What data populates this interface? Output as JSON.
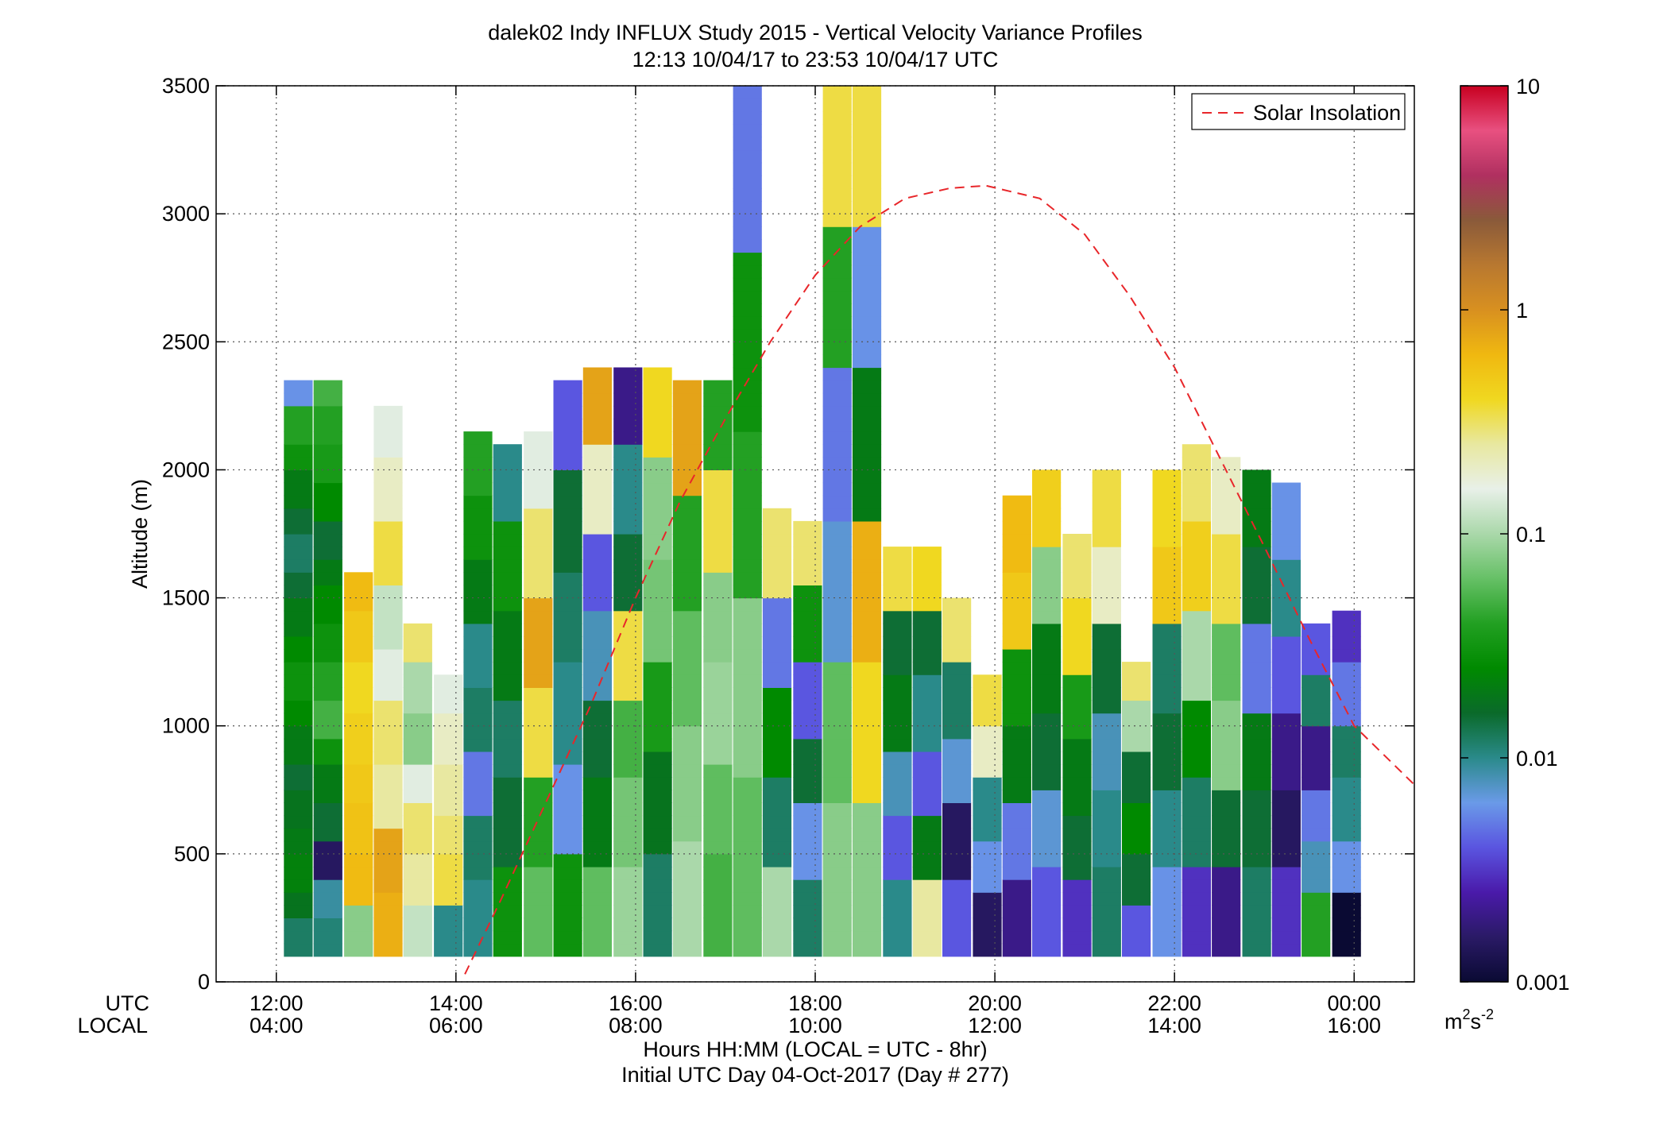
{
  "chart_data": {
    "type": "heatmap",
    "title": "dalek02 Indy INFLUX Study 2015 - Vertical Velocity Variance Profiles",
    "subtitle": "12:13 10/04/17 to 23:53 10/04/17  UTC",
    "xlabel": "Hours HH:MM  (LOCAL = UTC - 8hr)",
    "xlabel2": "Initial UTC Day 04-Oct-2017 (Day # 277)",
    "ylabel": "Altitude (m)",
    "x_row_labels": [
      "UTC",
      "LOCAL"
    ],
    "xlim_hours": [
      11.33,
      24.67
    ],
    "ylim": [
      0,
      3500
    ],
    "x_ticks": [
      {
        "value": 12,
        "utc": "12:00",
        "local": "04:00"
      },
      {
        "value": 14,
        "utc": "14:00",
        "local": "06:00"
      },
      {
        "value": 16,
        "utc": "16:00",
        "local": "08:00"
      },
      {
        "value": 18,
        "utc": "18:00",
        "local": "10:00"
      },
      {
        "value": 20,
        "utc": "20:00",
        "local": "12:00"
      },
      {
        "value": 22,
        "utc": "22:00",
        "local": "14:00"
      },
      {
        "value": 24,
        "utc": "00:00",
        "local": "16:00"
      }
    ],
    "y_ticks": [
      0,
      500,
      1000,
      1500,
      2000,
      2500,
      3000,
      3500
    ],
    "grid": true,
    "legend": {
      "position": "top-right",
      "entries": [
        {
          "label": "Solar Insolation",
          "color": "#e8262a",
          "style": "dashed"
        }
      ]
    },
    "colorbar": {
      "scale": "log",
      "range": [
        0.001,
        10
      ],
      "ticks": [
        {
          "value": 0.001,
          "label": "0.001"
        },
        {
          "value": 0.01,
          "label": "0.01"
        },
        {
          "value": 0.1,
          "label": "0.1"
        },
        {
          "value": 1,
          "label": "1"
        },
        {
          "value": 10,
          "label": "10"
        }
      ],
      "unit_base": "m",
      "unit_sup1": "2",
      "unit_mid": "s",
      "unit_sup2": "-2",
      "stops": [
        "#0a0a33",
        "#2a1a66",
        "#4a1aaa",
        "#5a55e0",
        "#6a9ae8",
        "#2a8a8a",
        "#0a6a2a",
        "#008a00",
        "#22a022",
        "#66c066",
        "#aad8aa",
        "#e8f0e8",
        "#e8e8a0",
        "#f0d820",
        "#f0b810",
        "#d89020",
        "#b87830",
        "#8a5a3a",
        "#b03060",
        "#e85080",
        "#c80020"
      ]
    },
    "solar_insolation": {
      "x_hours": [
        14.1,
        14.5,
        15.0,
        15.5,
        16.0,
        16.5,
        17.0,
        17.5,
        18.0,
        18.5,
        19.0,
        19.5,
        19.9,
        20.5,
        21.0,
        21.5,
        22.0,
        22.5,
        23.0,
        23.5,
        24.0,
        24.67
      ],
      "y_m": [
        30,
        320,
        700,
        1080,
        1500,
        1880,
        2200,
        2500,
        2760,
        2950,
        3060,
        3100,
        3110,
        3060,
        2920,
        2680,
        2400,
        2050,
        1700,
        1340,
        1000,
        770
      ]
    },
    "time_columns_hours": [
      12.25,
      12.58,
      12.92,
      13.25,
      13.58,
      13.92,
      14.25,
      14.58,
      14.92,
      15.25,
      15.58,
      15.92,
      16.25,
      16.58,
      16.92,
      17.25,
      17.58,
      17.92,
      18.25,
      18.58,
      18.92,
      19.25,
      19.58,
      19.92,
      20.25,
      20.58,
      20.92,
      21.25,
      21.58,
      21.92,
      22.25,
      22.58,
      22.92,
      23.25,
      23.58,
      23.92
    ],
    "profiles": [
      {
        "top_m": 2350,
        "values": [
          0.012,
          0.018,
          0.022,
          0.02,
          0.018,
          0.015,
          0.02,
          0.025,
          0.03,
          0.025,
          0.02,
          0.015,
          0.012,
          0.015,
          0.02,
          0.03,
          0.04,
          0.006
        ]
      },
      {
        "top_m": 2350,
        "values": [
          0.011,
          0.009,
          0.0015,
          0.015,
          0.02,
          0.03,
          0.05,
          0.04,
          0.03,
          0.025,
          0.02,
          0.015,
          0.025,
          0.035,
          0.04,
          0.05
        ]
      },
      {
        "top_m": 1600,
        "values": [
          0.08,
          0.6,
          0.55,
          0.5,
          0.45,
          0.4,
          0.5,
          0.6
        ]
      },
      {
        "top_m": 2250,
        "values": [
          0.7,
          0.8,
          0.25,
          0.3,
          0.15,
          0.12,
          0.35,
          0.2,
          0.15
        ]
      },
      {
        "top_m": 1400,
        "values": [
          0.12,
          0.25,
          0.3,
          0.15,
          0.08,
          0.1,
          0.3
        ]
      },
      {
        "top_m": 1200,
        "values": [
          0.01,
          0.35,
          0.3,
          0.25,
          0.2,
          0.15
        ]
      },
      {
        "top_m": 2150,
        "values": [
          0.01,
          0.012,
          0.005,
          0.012,
          0.01,
          0.02,
          0.03,
          0.04
        ]
      },
      {
        "top_m": 2100,
        "values": [
          0.03,
          0.015,
          0.012,
          0.02,
          0.03,
          0.01
        ]
      },
      {
        "top_m": 2150,
        "values": [
          0.06,
          0.04,
          0.35,
          0.8,
          0.3,
          0.15
        ]
      },
      {
        "top_m": 2350,
        "values": [
          0.03,
          0.006,
          0.01,
          0.012,
          0.015,
          0.004
        ]
      },
      {
        "top_m": 2400,
        "values": [
          0.06,
          0.02,
          0.015,
          0.008,
          0.004,
          0.2,
          0.8
        ]
      },
      {
        "top_m": 2400,
        "values": [
          0.09,
          0.07,
          0.05,
          0.35,
          0.015,
          0.01,
          0.002
        ]
      },
      {
        "top_m": 2400,
        "values": [
          0.012,
          0.018,
          0.035,
          0.07,
          0.08,
          0.4
        ]
      },
      {
        "top_m": 2350,
        "values": [
          0.1,
          0.08,
          0.06,
          0.04,
          0.8
        ]
      },
      {
        "top_m": 2350,
        "values": [
          0.05,
          0.06,
          0.09,
          0.08,
          0.35,
          0.04
        ]
      },
      {
        "top_m": 3500,
        "values": [
          0.06,
          0.08,
          0.04,
          0.03,
          0.005
        ]
      },
      {
        "top_m": 1850,
        "values": [
          0.1,
          0.012,
          0.025,
          0.005,
          0.3
        ]
      },
      {
        "top_m": 1800,
        "values": [
          0.012,
          0.006,
          0.015,
          0.004,
          0.03,
          0.3
        ]
      },
      {
        "top_m": 3500,
        "values": [
          0.08,
          0.06,
          0.007,
          0.005,
          0.04,
          0.35
        ]
      },
      {
        "top_m": 3500,
        "values": [
          0.08,
          0.4,
          0.7,
          0.02,
          0.006,
          0.35
        ]
      },
      {
        "top_m": 1700,
        "values": [
          0.01,
          0.004,
          0.008,
          0.02,
          0.015,
          0.35
        ]
      },
      {
        "top_m": 1700,
        "values": [
          0.25,
          0.02,
          0.004,
          0.01,
          0.015,
          0.4
        ]
      },
      {
        "top_m": 1500,
        "values": [
          0.004,
          0.0015,
          0.007,
          0.012,
          0.3
        ]
      },
      {
        "top_m": 1200,
        "values": [
          0.0015,
          0.006,
          0.01,
          0.2,
          0.35
        ]
      },
      {
        "top_m": 1900,
        "values": [
          0.002,
          0.005,
          0.02,
          0.03,
          0.5,
          0.6
        ]
      },
      {
        "top_m": 2000,
        "values": [
          0.004,
          0.007,
          0.015,
          0.02,
          0.08,
          0.45
        ]
      },
      {
        "top_m": 1750,
        "values": [
          0.003,
          0.015,
          0.02,
          0.035,
          0.4,
          0.3
        ]
      },
      {
        "top_m": 2000,
        "values": [
          0.012,
          0.01,
          0.008,
          0.015,
          0.2,
          0.35
        ]
      },
      {
        "top_m": 1250,
        "values": [
          0.004,
          0.015,
          0.025,
          0.015,
          0.1,
          0.3
        ]
      },
      {
        "top_m": 2000,
        "values": [
          0.006,
          0.01,
          0.015,
          0.012,
          0.5,
          0.4
        ]
      },
      {
        "top_m": 2100,
        "values": [
          0.003,
          0.012,
          0.025,
          0.1,
          0.45,
          0.3
        ]
      },
      {
        "top_m": 2050,
        "values": [
          0.002,
          0.015,
          0.08,
          0.06,
          0.35,
          0.2
        ]
      },
      {
        "top_m": 2000,
        "values": [
          0.012,
          0.015,
          0.02,
          0.005,
          0.015,
          0.02
        ]
      },
      {
        "top_m": 1950,
        "values": [
          0.003,
          0.0015,
          0.002,
          0.004,
          0.01,
          0.006
        ]
      },
      {
        "top_m": 1400,
        "values": [
          0.04,
          0.008,
          0.005,
          0.002,
          0.012,
          0.004
        ]
      },
      {
        "top_m": 1450,
        "values": [
          0.001,
          0.006,
          0.01,
          0.012,
          0.005,
          0.003
        ]
      }
    ]
  }
}
